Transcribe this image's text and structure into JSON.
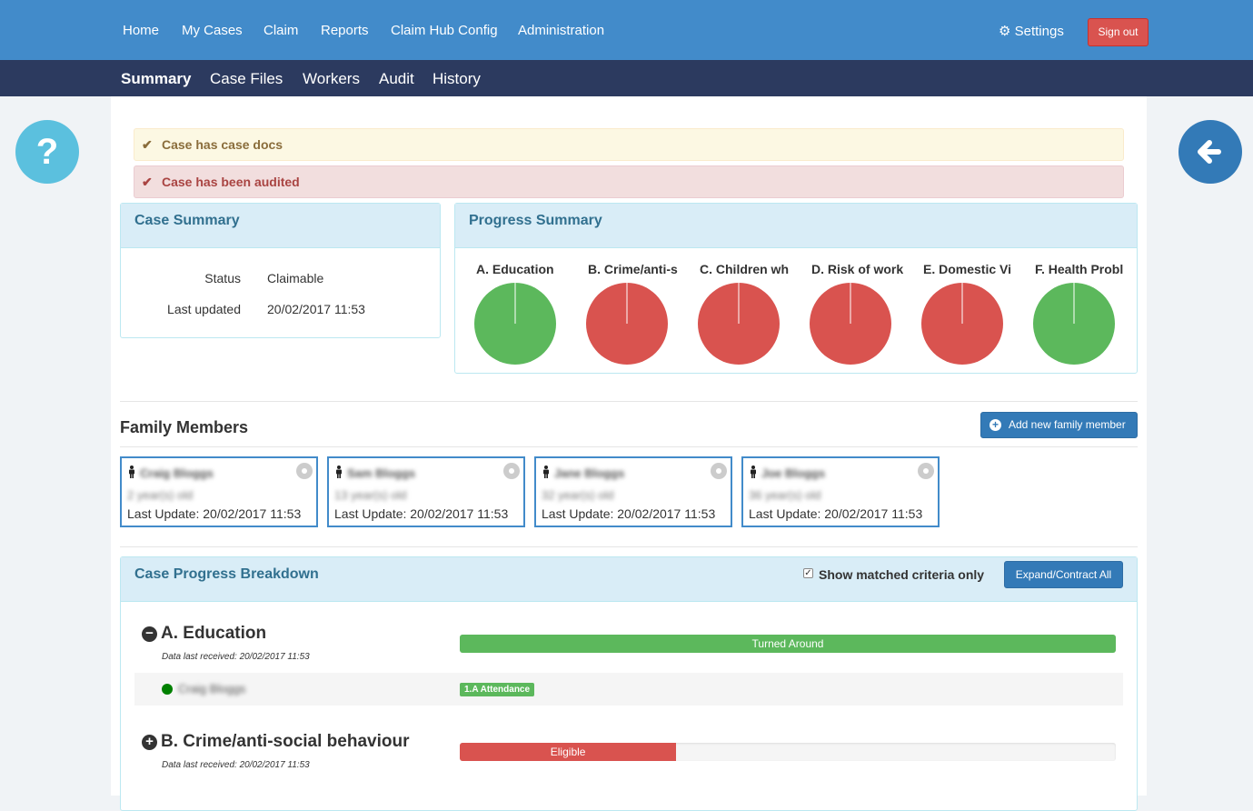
{
  "topnav": {
    "items": [
      "Home",
      "My Cases",
      "Claim",
      "Reports",
      "Claim Hub Config",
      "Administration"
    ],
    "settings": "Settings",
    "signout": "Sign out"
  },
  "subnav": {
    "tabs": [
      "Summary",
      "Case Files",
      "Workers",
      "Audit",
      "History"
    ],
    "active": "Summary"
  },
  "alerts": {
    "docs": "Case has case docs",
    "audited": "Case has been audited"
  },
  "case_summary": {
    "title": "Case Summary",
    "status_label": "Status",
    "status_value": "Claimable",
    "updated_label": "Last updated",
    "updated_value": "20/02/2017 11:53"
  },
  "progress_summary": {
    "title": "Progress Summary",
    "items": [
      {
        "label": "A. Education",
        "color": "#5cb85c"
      },
      {
        "label": "B. Crime/anti-s",
        "color": "#d9534f"
      },
      {
        "label": "C. Children wh",
        "color": "#d9534f"
      },
      {
        "label": "D. Risk of work",
        "color": "#d9534f"
      },
      {
        "label": "E. Domestic Vi",
        "color": "#d9534f"
      },
      {
        "label": "F. Health Probl",
        "color": "#5cb85c"
      }
    ]
  },
  "family": {
    "title": "Family Members",
    "add_button": "Add new family member",
    "members": [
      {
        "name": "Craig Bloggs",
        "age": "2 year(s) old",
        "update": "Last Update: 20/02/2017 11:53"
      },
      {
        "name": "Sam Bloggs",
        "age": "13 year(s) old",
        "update": "Last Update: 20/02/2017 11:53"
      },
      {
        "name": "Jane Bloggs",
        "age": "32 year(s) old",
        "update": "Last Update: 20/02/2017 11:53"
      },
      {
        "name": "Joe Bloggs",
        "age": "36 year(s) old",
        "update": "Last Update: 20/02/2017 11:53"
      }
    ]
  },
  "breakdown": {
    "title": "Case Progress Breakdown",
    "checkbox_label": "Show matched criteria only",
    "checkbox_checked": true,
    "expand_button": "Expand/Contract All",
    "criteria": [
      {
        "title": "A. Education",
        "date": "Data last received: 20/02/2017 11:53",
        "status": "Turned Around",
        "status_color": "#5cb85c",
        "progress": 1.0,
        "icon": "minus",
        "rows": [
          {
            "name": "Craig Bloggs",
            "badge": "1.A Attendance"
          }
        ]
      },
      {
        "title": "B. Crime/anti-social behaviour",
        "date": "Data last received: 20/02/2017 11:53",
        "status": "Eligible",
        "status_color": "#d9534f",
        "progress": 0.33,
        "icon": "plus",
        "rows": []
      }
    ]
  },
  "colors": {
    "primary": "#428bca",
    "subnav": "#2c3a5f",
    "success": "#5cb85c",
    "danger": "#d9534f",
    "info_bg": "#d9edf7"
  }
}
